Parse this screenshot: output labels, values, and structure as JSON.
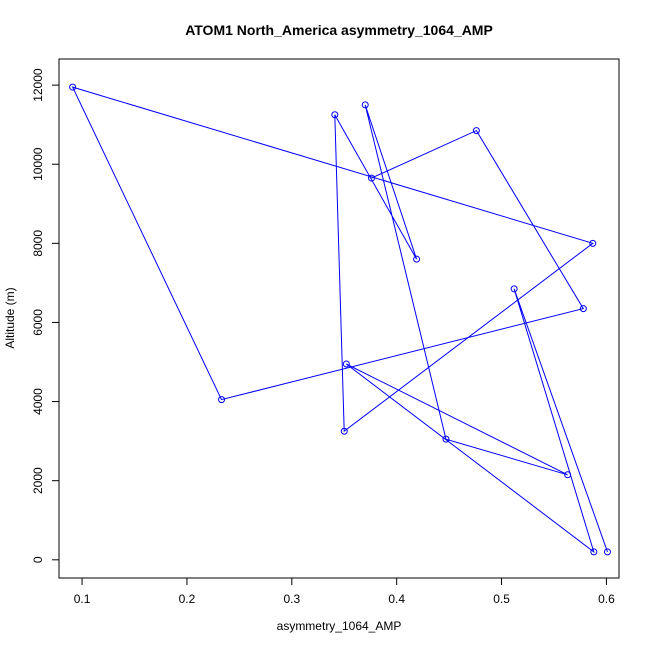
{
  "chart_data": {
    "type": "line",
    "title": "ATOM1 North_America asymmetry_1064_AMP",
    "xlabel": "asymmetry_1064_AMP",
    "ylabel": "Altitude (m)",
    "xlim": [
      0.078,
      0.612
    ],
    "ylim": [
      -460,
      12660
    ],
    "xticks": [
      0.1,
      0.2,
      0.3,
      0.4,
      0.5,
      0.6
    ],
    "xtick_labels": [
      "0.1",
      "0.2",
      "0.3",
      "0.4",
      "0.5",
      "0.6"
    ],
    "yticks": [
      0,
      2000,
      4000,
      6000,
      8000,
      10000,
      12000
    ],
    "ytick_labels": [
      "0",
      "2000",
      "4000",
      "6000",
      "8000",
      "10000",
      "12000"
    ],
    "series_color": "#0000ff",
    "points": [
      {
        "x": 0.601,
        "y": 200
      },
      {
        "x": 0.512,
        "y": 6850
      },
      {
        "x": 0.588,
        "y": 200
      },
      {
        "x": 0.352,
        "y": 4950
      },
      {
        "x": 0.563,
        "y": 2150
      },
      {
        "x": 0.447,
        "y": 3050
      },
      {
        "x": 0.37,
        "y": 11500
      },
      {
        "x": 0.419,
        "y": 7600
      },
      {
        "x": 0.341,
        "y": 11250
      },
      {
        "x": 0.35,
        "y": 3250
      },
      {
        "x": 0.587,
        "y": 8000
      },
      {
        "x": 0.091,
        "y": 11950
      },
      {
        "x": 0.233,
        "y": 4050
      },
      {
        "x": 0.578,
        "y": 6350
      },
      {
        "x": 0.476,
        "y": 10850
      },
      {
        "x": 0.376,
        "y": 9650
      }
    ]
  }
}
